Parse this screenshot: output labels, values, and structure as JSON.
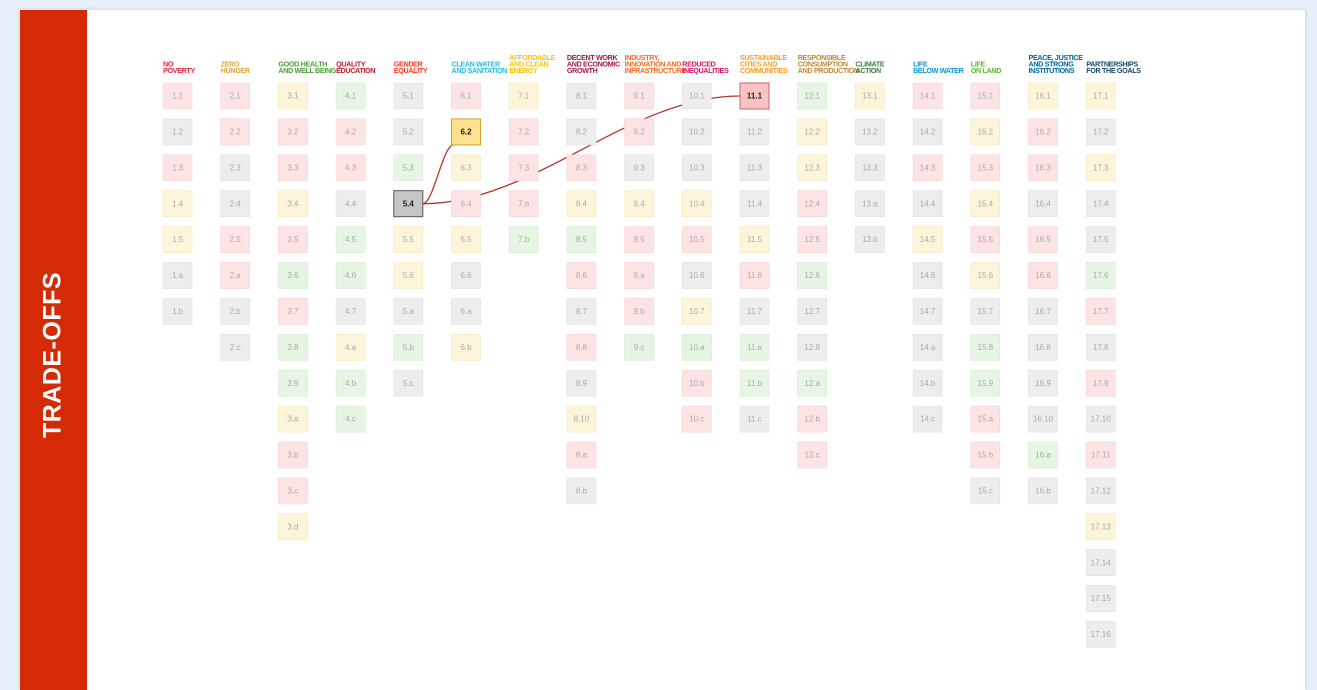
{
  "sidebar": {
    "title": "TRADE-OFFS"
  },
  "goals": [
    {
      "label": [
        "NO",
        "POVERTY"
      ],
      "color": "#e5243b",
      "targets": [
        {
          "code": "1.1",
          "tone": "red"
        },
        {
          "code": "1.2",
          "tone": "grey"
        },
        {
          "code": "1.3",
          "tone": "red"
        },
        {
          "code": "1.4",
          "tone": "yellow"
        },
        {
          "code": "1.5",
          "tone": "yellow"
        },
        {
          "code": "1.a",
          "tone": "grey"
        },
        {
          "code": "1.b",
          "tone": "grey"
        }
      ]
    },
    {
      "label": [
        "ZERO",
        "HUNGER"
      ],
      "color": "#dda63a",
      "targets": [
        {
          "code": "2.1",
          "tone": "red"
        },
        {
          "code": "2.2",
          "tone": "red"
        },
        {
          "code": "2.3",
          "tone": "grey"
        },
        {
          "code": "2.4",
          "tone": "grey"
        },
        {
          "code": "2.5",
          "tone": "red"
        },
        {
          "code": "2.a",
          "tone": "red"
        },
        {
          "code": "2.b",
          "tone": "grey"
        },
        {
          "code": "2.c",
          "tone": "grey"
        }
      ]
    },
    {
      "label": [
        "GOOD HEALTH",
        "AND WELL BEING"
      ],
      "color": "#4c9f38",
      "targets": [
        {
          "code": "3.1",
          "tone": "yellow"
        },
        {
          "code": "3.2",
          "tone": "red"
        },
        {
          "code": "3.3",
          "tone": "red"
        },
        {
          "code": "3.4",
          "tone": "yellow"
        },
        {
          "code": "3.5",
          "tone": "red"
        },
        {
          "code": "3.6",
          "tone": "green"
        },
        {
          "code": "3.7",
          "tone": "red"
        },
        {
          "code": "3.8",
          "tone": "green"
        },
        {
          "code": "3.9",
          "tone": "green"
        },
        {
          "code": "3.a",
          "tone": "yellow"
        },
        {
          "code": "3.b",
          "tone": "red"
        },
        {
          "code": "3.c",
          "tone": "red"
        },
        {
          "code": "3.d",
          "tone": "yellow"
        }
      ]
    },
    {
      "label": [
        "QUALITY",
        "EDUCATION"
      ],
      "color": "#c5192d",
      "targets": [
        {
          "code": "4.1",
          "tone": "green"
        },
        {
          "code": "4.2",
          "tone": "red"
        },
        {
          "code": "4.3",
          "tone": "red"
        },
        {
          "code": "4.4",
          "tone": "grey"
        },
        {
          "code": "4.5",
          "tone": "green"
        },
        {
          "code": "4.6",
          "tone": "green"
        },
        {
          "code": "4.7",
          "tone": "grey"
        },
        {
          "code": "4.a",
          "tone": "yellow"
        },
        {
          "code": "4.b",
          "tone": "green"
        },
        {
          "code": "4.c",
          "tone": "green"
        }
      ]
    },
    {
      "label": [
        "GENDER",
        "EQUALITY"
      ],
      "color": "#ff3a21",
      "targets": [
        {
          "code": "5.1",
          "tone": "grey"
        },
        {
          "code": "5.2",
          "tone": "grey"
        },
        {
          "code": "5.3",
          "tone": "green"
        },
        {
          "code": "5.4",
          "tone": "grey",
          "selected": true
        },
        {
          "code": "5.5",
          "tone": "yellow"
        },
        {
          "code": "5.6",
          "tone": "yellow"
        },
        {
          "code": "5.a",
          "tone": "grey"
        },
        {
          "code": "5.b",
          "tone": "green"
        },
        {
          "code": "5.c",
          "tone": "grey"
        }
      ]
    },
    {
      "label": [
        "CLEAN WATER",
        "AND SANITATION"
      ],
      "color": "#26bde2",
      "targets": [
        {
          "code": "6.1",
          "tone": "red"
        },
        {
          "code": "6.2",
          "tone": "yellow",
          "linked": true
        },
        {
          "code": "6.3",
          "tone": "yellow"
        },
        {
          "code": "6.4",
          "tone": "red"
        },
        {
          "code": "6.5",
          "tone": "yellow"
        },
        {
          "code": "6.6",
          "tone": "grey"
        },
        {
          "code": "6.a",
          "tone": "grey"
        },
        {
          "code": "6.b",
          "tone": "yellow"
        }
      ]
    },
    {
      "label": [
        "AFFORDABLE",
        "AND CLEAN",
        "ENERGY"
      ],
      "color": "#fcc30b",
      "targets": [
        {
          "code": "7.1",
          "tone": "yellow"
        },
        {
          "code": "7.2",
          "tone": "red"
        },
        {
          "code": "7.3",
          "tone": "red"
        },
        {
          "code": "7.a",
          "tone": "red"
        },
        {
          "code": "7.b",
          "tone": "green"
        }
      ]
    },
    {
      "label": [
        "DECENT WORK",
        "AND ECONOMIC",
        "GROWTH"
      ],
      "color": "#a21942",
      "targets": [
        {
          "code": "8.1",
          "tone": "grey"
        },
        {
          "code": "8.2",
          "tone": "grey"
        },
        {
          "code": "8.3",
          "tone": "red"
        },
        {
          "code": "8.4",
          "tone": "yellow"
        },
        {
          "code": "8.5",
          "tone": "green"
        },
        {
          "code": "8.6",
          "tone": "red"
        },
        {
          "code": "8.7",
          "tone": "grey"
        },
        {
          "code": "8.8",
          "tone": "red"
        },
        {
          "code": "8.9",
          "tone": "grey"
        },
        {
          "code": "8.10",
          "tone": "yellow"
        },
        {
          "code": "8.a",
          "tone": "red"
        },
        {
          "code": "8.b",
          "tone": "grey"
        }
      ]
    },
    {
      "label": [
        "INDUSTRY,",
        "INNOVATION AND",
        "INFRASTRUCTURE"
      ],
      "color": "#fd6925",
      "targets": [
        {
          "code": "9.1",
          "tone": "red"
        },
        {
          "code": "9.2",
          "tone": "red"
        },
        {
          "code": "9.3",
          "tone": "grey"
        },
        {
          "code": "9.4",
          "tone": "yellow"
        },
        {
          "code": "9.5",
          "tone": "red"
        },
        {
          "code": "9.a",
          "tone": "red"
        },
        {
          "code": "9.b",
          "tone": "red"
        },
        {
          "code": "9.c",
          "tone": "green"
        }
      ]
    },
    {
      "label": [
        "REDUCED",
        "INEQUALITIES"
      ],
      "color": "#dd1367",
      "targets": [
        {
          "code": "10.1",
          "tone": "grey"
        },
        {
          "code": "10.2",
          "tone": "grey"
        },
        {
          "code": "10.3",
          "tone": "grey"
        },
        {
          "code": "10.4",
          "tone": "yellow"
        },
        {
          "code": "10.5",
          "tone": "red"
        },
        {
          "code": "10.6",
          "tone": "grey"
        },
        {
          "code": "10.7",
          "tone": "yellow"
        },
        {
          "code": "10.a",
          "tone": "green"
        },
        {
          "code": "10.b",
          "tone": "red"
        },
        {
          "code": "10.c",
          "tone": "red"
        }
      ]
    },
    {
      "label": [
        "SUSTAINABLE",
        "CITIES AND",
        "COMMUNITIES"
      ],
      "color": "#fd9d24",
      "targets": [
        {
          "code": "11.1",
          "tone": "red",
          "linked": true
        },
        {
          "code": "11.2",
          "tone": "grey"
        },
        {
          "code": "11.3",
          "tone": "grey"
        },
        {
          "code": "11.4",
          "tone": "grey"
        },
        {
          "code": "11.5",
          "tone": "yellow"
        },
        {
          "code": "11.6",
          "tone": "red"
        },
        {
          "code": "11.7",
          "tone": "grey"
        },
        {
          "code": "11.a",
          "tone": "green"
        },
        {
          "code": "11.b",
          "tone": "green"
        },
        {
          "code": "11.c",
          "tone": "grey"
        }
      ]
    },
    {
      "label": [
        "RESPONSIBLE",
        "CONSUMPTION",
        "AND PRODUCTION"
      ],
      "color": "#bf8b2e",
      "targets": [
        {
          "code": "12.1",
          "tone": "green"
        },
        {
          "code": "12.2",
          "tone": "yellow"
        },
        {
          "code": "12.3",
          "tone": "yellow"
        },
        {
          "code": "12.4",
          "tone": "red"
        },
        {
          "code": "12.5",
          "tone": "red"
        },
        {
          "code": "12.6",
          "tone": "green"
        },
        {
          "code": "12.7",
          "tone": "grey"
        },
        {
          "code": "12.8",
          "tone": "grey"
        },
        {
          "code": "12.a",
          "tone": "green"
        },
        {
          "code": "12.b",
          "tone": "red"
        },
        {
          "code": "12.c",
          "tone": "red"
        }
      ]
    },
    {
      "label": [
        "CLIMATE",
        "ACTION"
      ],
      "color": "#3f7e44",
      "targets": [
        {
          "code": "13.1",
          "tone": "yellow"
        },
        {
          "code": "13.2",
          "tone": "grey"
        },
        {
          "code": "13.3",
          "tone": "grey"
        },
        {
          "code": "13.a",
          "tone": "grey"
        },
        {
          "code": "13.b",
          "tone": "grey"
        }
      ]
    },
    {
      "label": [
        "LIFE",
        "BELOW WATER"
      ],
      "color": "#0a97d9",
      "targets": [
        {
          "code": "14.1",
          "tone": "red"
        },
        {
          "code": "14.2",
          "tone": "grey"
        },
        {
          "code": "14.3",
          "tone": "red"
        },
        {
          "code": "14.4",
          "tone": "grey"
        },
        {
          "code": "14.5",
          "tone": "yellow"
        },
        {
          "code": "14.6",
          "tone": "grey"
        },
        {
          "code": "14.7",
          "tone": "grey"
        },
        {
          "code": "14.a",
          "tone": "grey"
        },
        {
          "code": "14.b",
          "tone": "grey"
        },
        {
          "code": "14.c",
          "tone": "grey"
        }
      ]
    },
    {
      "label": [
        "LIFE",
        "ON LAND"
      ],
      "color": "#56c02b",
      "targets": [
        {
          "code": "15.1",
          "tone": "red"
        },
        {
          "code": "15.2",
          "tone": "yellow"
        },
        {
          "code": "15.3",
          "tone": "red"
        },
        {
          "code": "15.4",
          "tone": "yellow"
        },
        {
          "code": "15.5",
          "tone": "red"
        },
        {
          "code": "15.6",
          "tone": "yellow"
        },
        {
          "code": "15.7",
          "tone": "grey"
        },
        {
          "code": "15.8",
          "tone": "green"
        },
        {
          "code": "15.9",
          "tone": "green"
        },
        {
          "code": "15.a",
          "tone": "red"
        },
        {
          "code": "15.b",
          "tone": "red"
        },
        {
          "code": "15.c",
          "tone": "grey"
        }
      ]
    },
    {
      "label": [
        "PEACE, JUSTICE",
        "AND STRONG",
        "INSTITUTIONS"
      ],
      "color": "#00689d",
      "targets": [
        {
          "code": "16.1",
          "tone": "yellow"
        },
        {
          "code": "16.2",
          "tone": "red"
        },
        {
          "code": "16.3",
          "tone": "red"
        },
        {
          "code": "16.4",
          "tone": "grey"
        },
        {
          "code": "16.5",
          "tone": "red"
        },
        {
          "code": "16.6",
          "tone": "red"
        },
        {
          "code": "16.7",
          "tone": "grey"
        },
        {
          "code": "16.8",
          "tone": "grey"
        },
        {
          "code": "16.9",
          "tone": "grey"
        },
        {
          "code": "16.10",
          "tone": "grey"
        },
        {
          "code": "16.a",
          "tone": "green"
        },
        {
          "code": "16.b",
          "tone": "grey"
        }
      ]
    },
    {
      "label": [
        "PARTNERSHIPS",
        "FOR THE GOALS"
      ],
      "color": "#19486a",
      "targets": [
        {
          "code": "17.1",
          "tone": "yellow"
        },
        {
          "code": "17.2",
          "tone": "grey"
        },
        {
          "code": "17.3",
          "tone": "yellow"
        },
        {
          "code": "17.4",
          "tone": "grey"
        },
        {
          "code": "17.5",
          "tone": "grey"
        },
        {
          "code": "17.6",
          "tone": "green"
        },
        {
          "code": "17.7",
          "tone": "red"
        },
        {
          "code": "17.8",
          "tone": "grey"
        },
        {
          "code": "17.9",
          "tone": "red"
        },
        {
          "code": "17.10",
          "tone": "grey"
        },
        {
          "code": "17.11",
          "tone": "red"
        },
        {
          "code": "17.12",
          "tone": "grey"
        },
        {
          "code": "17.13",
          "tone": "yellow"
        },
        {
          "code": "17.14",
          "tone": "grey"
        },
        {
          "code": "17.15",
          "tone": "grey"
        },
        {
          "code": "17.16",
          "tone": "grey"
        }
      ]
    }
  ]
}
